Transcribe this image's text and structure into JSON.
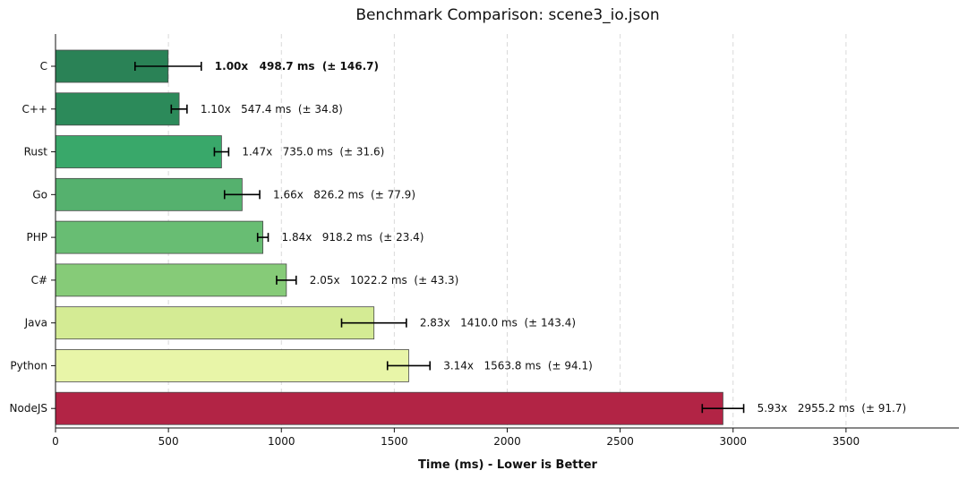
{
  "chart_data": {
    "type": "bar",
    "orientation": "horizontal",
    "title": "Benchmark Comparison: scene3_io.json",
    "xlabel": "Time (ms) - Lower is Better",
    "ylabel": "",
    "xlim": [
      0,
      4000
    ],
    "xticks": [
      0,
      500,
      1000,
      1500,
      2000,
      2500,
      3000,
      3500
    ],
    "grid": "vertical-dashed",
    "categories": [
      "C",
      "C++",
      "Rust",
      "Go",
      "PHP",
      "C#",
      "Java",
      "Python",
      "NodeJS"
    ],
    "values": [
      498.7,
      547.4,
      735.0,
      826.2,
      918.2,
      1022.2,
      1410.0,
      1563.8,
      2955.2
    ],
    "errors": [
      146.7,
      34.8,
      31.6,
      77.9,
      23.4,
      43.3,
      143.4,
      94.1,
      91.7
    ],
    "ratios": [
      "1.00x",
      "1.10x",
      "1.47x",
      "1.66x",
      "1.84x",
      "2.05x",
      "2.83x",
      "3.14x",
      "5.93x"
    ],
    "labels": [
      "1.00x   498.7 ms  (± 146.7)",
      "1.10x   547.4 ms  (± 34.8)",
      "1.47x   735.0 ms  (± 31.6)",
      "1.66x   826.2 ms  (± 77.9)",
      "1.84x   918.2 ms  (± 23.4)",
      "2.05x   1022.2 ms  (± 43.3)",
      "2.83x   1410.0 ms  (± 143.4)",
      "3.14x   1563.8 ms  (± 94.1)",
      "5.93x   2955.2 ms  (± 91.7)"
    ],
    "colors": [
      "#2a8256",
      "#2c8a5a",
      "#39a86a",
      "#55b16e",
      "#68bd73",
      "#86cb78",
      "#d4eb94",
      "#e8f5a8",
      "#b22445"
    ],
    "highlight_category": "C"
  }
}
